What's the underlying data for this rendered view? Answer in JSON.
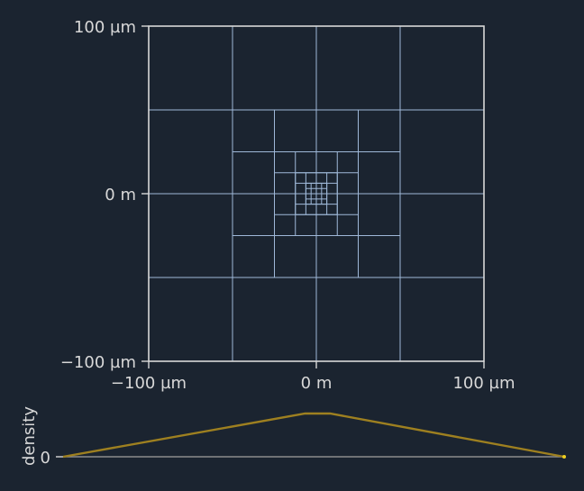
{
  "colors": {
    "background": "#1b2430",
    "axes": "#d8d8d8",
    "grid": "#9fb8d8",
    "density_line": "#9e8020",
    "baseline": "#8c8c8c",
    "endpoint_marker": "#f0d020"
  },
  "mesh_plot": {
    "x_ticks": [
      "−100 µm",
      "0 m",
      "100 µm"
    ],
    "y_ticks": [
      "−100 µm",
      "0 m",
      "100 µm"
    ],
    "x_range_um": [
      -100,
      100
    ],
    "y_range_um": [
      -100,
      100
    ]
  },
  "density_plot": {
    "ylabel": "density",
    "zero_tick": "0"
  },
  "chart_data": [
    {
      "type": "mesh",
      "xlim": [
        -100,
        100
      ],
      "ylim": [
        -100,
        100
      ],
      "units": "µm",
      "refinement_levels": [
        {
          "half_width": 100,
          "divisions": 4
        },
        {
          "half_width": 50,
          "divisions": 4
        },
        {
          "half_width": 25,
          "divisions": 4
        },
        {
          "half_width": 12.5,
          "divisions": 4
        },
        {
          "half_width": 6.25,
          "divisions": 4
        }
      ],
      "x_tick_labels": [
        "−100 µm",
        "0 m",
        "100 µm"
      ],
      "y_tick_labels": [
        "−100 µm",
        "0 m",
        "100 µm"
      ]
    },
    {
      "type": "line",
      "ylabel": "density",
      "y_tick_labels": [
        "0"
      ],
      "x": [
        0,
        0.483,
        0.533,
        1
      ],
      "y": [
        0,
        1,
        1,
        0
      ]
    }
  ]
}
